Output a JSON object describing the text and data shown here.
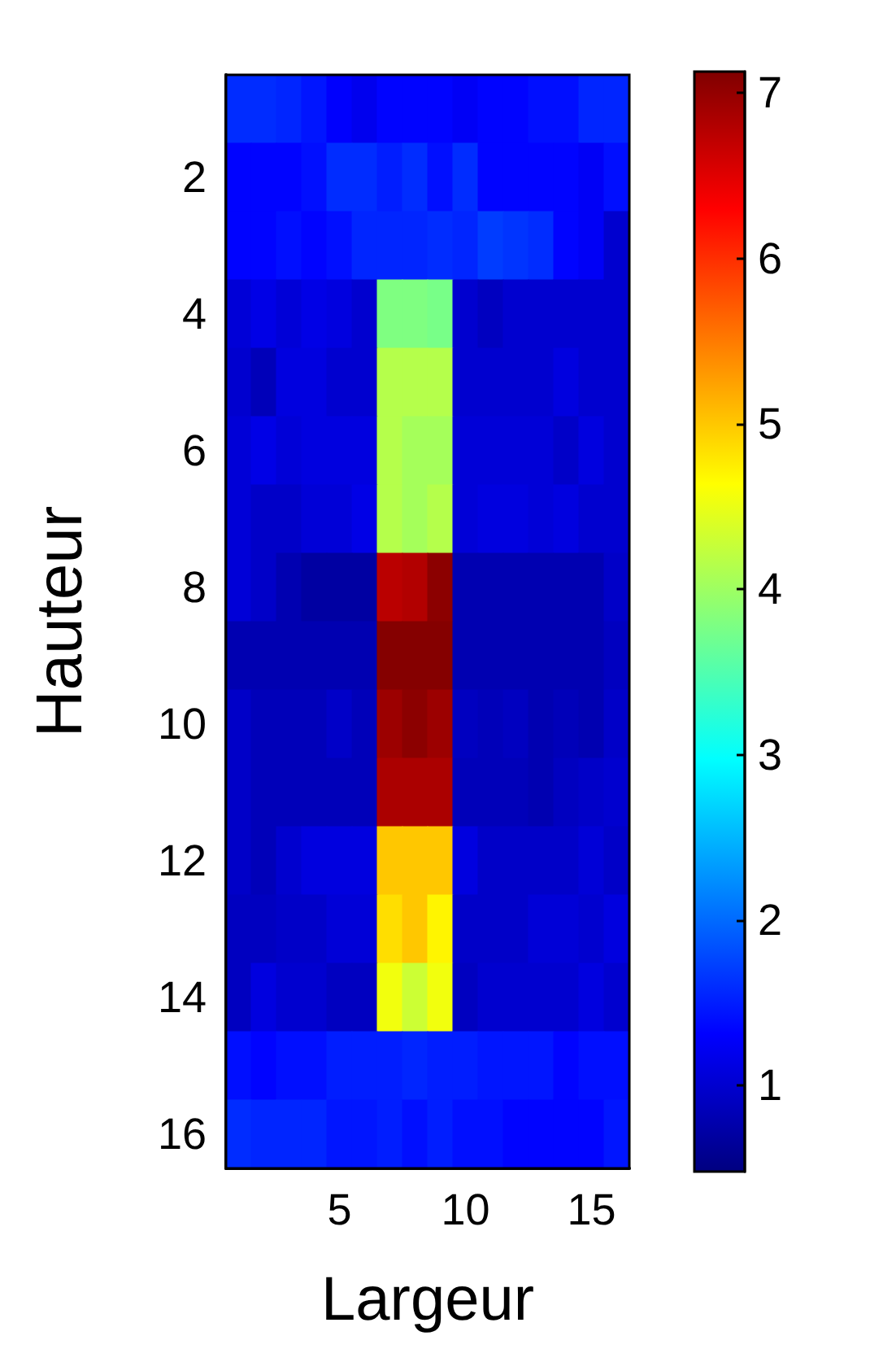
{
  "chart_data": {
    "type": "heatmap",
    "xlabel": "Largeur",
    "ylabel": "Hauteur",
    "categories": [
      null,
      null,
      null,
      null,
      "5",
      null,
      null,
      null,
      null,
      "10",
      null,
      null,
      null,
      null,
      "15",
      null
    ],
    "y_categories": [
      null,
      "2",
      null,
      "4",
      null,
      "6",
      null,
      "8",
      null,
      "10",
      null,
      "12",
      null,
      "14",
      null,
      "16"
    ],
    "cells": [
      [
        1.6,
        1.6,
        1.55,
        1.45,
        1.3,
        1.2,
        1.33,
        1.33,
        1.33,
        1.25,
        1.33,
        1.33,
        1.4,
        1.4,
        1.55,
        1.55
      ],
      [
        1.33,
        1.33,
        1.33,
        1.4,
        1.6,
        1.6,
        1.5,
        1.6,
        1.4,
        1.6,
        1.33,
        1.33,
        1.33,
        1.33,
        1.25,
        1.4
      ],
      [
        1.33,
        1.33,
        1.4,
        1.33,
        1.4,
        1.55,
        1.55,
        1.55,
        1.6,
        1.55,
        1.7,
        1.65,
        1.6,
        1.33,
        1.25,
        1.0
      ],
      [
        1.05,
        1.15,
        1.05,
        1.15,
        1.1,
        1.0,
        3.8,
        3.8,
        3.75,
        1.0,
        0.9,
        1.0,
        1.0,
        1.0,
        1.0,
        1.0
      ],
      [
        1.0,
        0.85,
        1.1,
        1.1,
        1.0,
        1.0,
        4.15,
        4.15,
        4.15,
        1.0,
        1.0,
        1.0,
        1.0,
        1.1,
        1.0,
        1.0
      ],
      [
        1.05,
        1.15,
        1.05,
        1.1,
        1.1,
        1.1,
        4.15,
        4.05,
        4.05,
        1.05,
        1.05,
        1.05,
        1.05,
        0.95,
        1.1,
        1.0
      ],
      [
        1.05,
        0.95,
        0.95,
        1.05,
        1.05,
        1.15,
        4.15,
        4.05,
        4.15,
        1.05,
        1.1,
        1.1,
        1.05,
        1.1,
        1.0,
        1.0
      ],
      [
        1.05,
        0.95,
        0.8,
        0.7,
        0.7,
        0.7,
        6.75,
        6.8,
        7.05,
        0.8,
        0.8,
        0.8,
        0.8,
        0.8,
        0.8,
        0.95
      ],
      [
        0.8,
        0.8,
        0.8,
        0.8,
        0.8,
        0.8,
        7.1,
        7.1,
        7.1,
        0.8,
        0.8,
        0.8,
        0.8,
        0.8,
        0.8,
        0.9
      ],
      [
        0.95,
        0.85,
        0.85,
        0.85,
        0.95,
        0.85,
        6.95,
        7.05,
        6.95,
        0.9,
        0.85,
        0.9,
        0.8,
        0.85,
        0.8,
        0.95
      ],
      [
        0.95,
        0.85,
        0.85,
        0.85,
        0.85,
        0.85,
        6.85,
        6.85,
        6.85,
        0.85,
        0.85,
        0.85,
        0.8,
        0.9,
        0.95,
        1.0
      ],
      [
        0.95,
        0.85,
        1.0,
        1.1,
        1.1,
        1.1,
        5.0,
        5.0,
        5.0,
        1.1,
        0.95,
        0.95,
        0.95,
        0.95,
        1.05,
        0.95
      ],
      [
        0.9,
        0.9,
        0.95,
        0.95,
        1.05,
        1.05,
        4.85,
        5.0,
        4.7,
        0.95,
        0.95,
        0.95,
        1.05,
        1.05,
        1.0,
        1.1
      ],
      [
        0.9,
        1.1,
        1.0,
        1.0,
        0.9,
        0.9,
        4.55,
        4.3,
        4.55,
        0.9,
        1.0,
        1.0,
        1.0,
        1.0,
        1.1,
        1.0
      ],
      [
        1.4,
        1.33,
        1.4,
        1.4,
        1.5,
        1.5,
        1.5,
        1.55,
        1.5,
        1.5,
        1.45,
        1.45,
        1.45,
        1.33,
        1.4,
        1.4
      ],
      [
        1.6,
        1.55,
        1.55,
        1.55,
        1.45,
        1.45,
        1.5,
        1.4,
        1.5,
        1.4,
        1.4,
        1.33,
        1.33,
        1.33,
        1.33,
        1.45
      ]
    ],
    "clim": [
      0.48,
      7.13
    ],
    "cticks": [
      1,
      2,
      3,
      4,
      5,
      6,
      7
    ]
  }
}
